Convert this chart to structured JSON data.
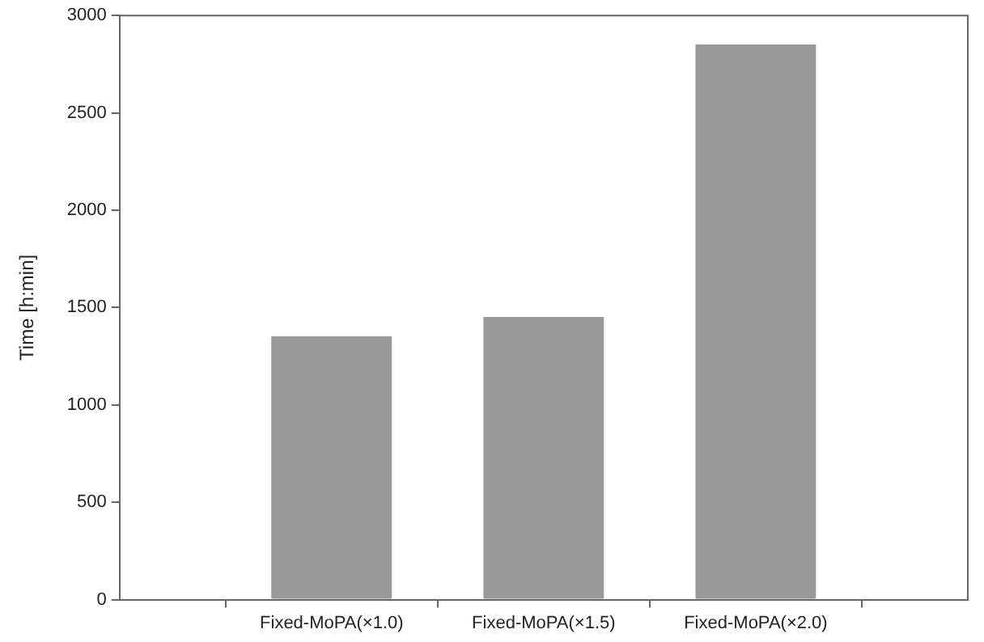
{
  "chart_data": {
    "type": "bar",
    "ylabel": "Time [h:min]",
    "categories": [
      "Fixed-MoPA(×1.0)",
      "Fixed-MoPA(×1.5)",
      "Fixed-MoPA(×2.0)"
    ],
    "values": [
      1350,
      1450,
      2850
    ],
    "color": "#999999",
    "ylim": [
      0,
      3000
    ],
    "yticks": [
      0,
      500,
      1000,
      1500,
      2000,
      2500,
      3000
    ],
    "grid": false,
    "legend": false
  }
}
